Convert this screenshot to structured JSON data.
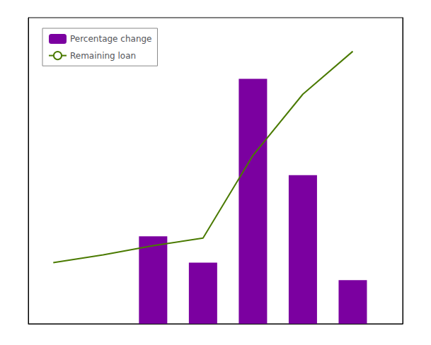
{
  "chart_data": {
    "type": "bar",
    "series": [
      {
        "name": "Percentage change",
        "type": "bar",
        "color": "#7B00A0",
        "x": [
          1.5,
          2.5,
          3.5,
          4.5,
          5.5,
          6.5
        ],
        "values": [
          0,
          10,
          7,
          28,
          17,
          5
        ]
      },
      {
        "name": "Remaining loan",
        "type": "line",
        "axis": "y2",
        "color": "#4A7A00",
        "x": [
          0.5,
          1.5,
          2.5,
          3.5,
          4.5,
          5.5,
          6.5
        ],
        "values": [
          400,
          450,
          510,
          560,
          1100,
          1500,
          1780
        ]
      }
    ],
    "xlim": [
      0.0,
      7.5
    ],
    "ylim": [
      0,
      35
    ],
    "y2lim": [
      0,
      2000
    ],
    "tick_labels": false,
    "grid": false,
    "legend": "upper left"
  }
}
